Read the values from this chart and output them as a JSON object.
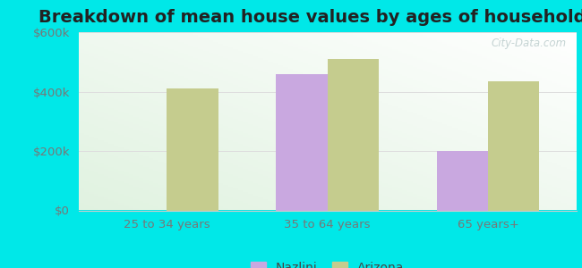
{
  "title": "Breakdown of mean house values by ages of householders",
  "categories": [
    "25 to 34 years",
    "35 to 64 years",
    "65 years+"
  ],
  "nazlini_values": [
    0,
    460000,
    200000
  ],
  "arizona_values": [
    410000,
    510000,
    435000
  ],
  "nazlini_color": "#c9a8e0",
  "arizona_color": "#c5cc8e",
  "background_outer": "#00e8e8",
  "ylim": [
    0,
    600000
  ],
  "yticks": [
    0,
    200000,
    400000,
    600000
  ],
  "ytick_labels": [
    "$0",
    "$200k",
    "$400k",
    "$600k"
  ],
  "bar_width": 0.32,
  "legend_nazlini": "Nazlini",
  "legend_arizona": "Arizona",
  "title_fontsize": 14,
  "tick_fontsize": 9.5,
  "legend_fontsize": 10
}
